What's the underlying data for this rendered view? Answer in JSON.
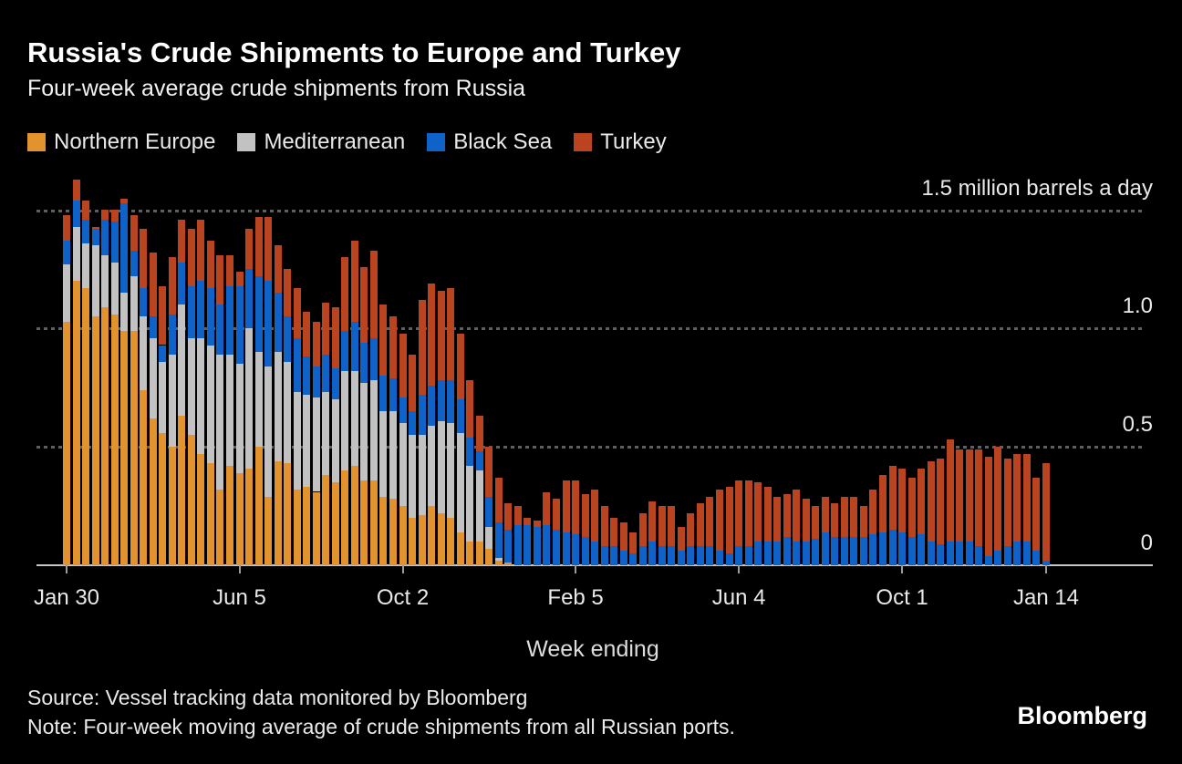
{
  "header": {
    "title": "Russia's Crude Shipments to Europe and Turkey",
    "subtitle": "Four-week average crude shipments from Russia"
  },
  "footer": {
    "source": "Source: Vessel tracking data monitored by Bloomberg",
    "note": "Note: Four-week moving average of crude shipments from all Russian ports.",
    "logo": "Bloomberg"
  },
  "chart_data": {
    "type": "bar",
    "stacked": true,
    "title": "Russia's Crude Shipments to Europe and Turkey",
    "subtitle": "Four-week average crude shipments from Russia",
    "unit": "million barrels a day",
    "x_axis_label": "Week ending",
    "legend_position": "top",
    "grid": "dashed-horizontal",
    "background_color": "#000000",
    "ylim": [
      0,
      1.69
    ],
    "weeks": 103,
    "x_ticks": [
      {
        "label": "Jan 30",
        "week": 0
      },
      {
        "label": "Jun 5",
        "week": 18
      },
      {
        "label": "Oct 2",
        "week": 35
      },
      {
        "label": "Feb 5",
        "week": 53
      },
      {
        "label": "Jun 4",
        "week": 70
      },
      {
        "label": "Oct 1",
        "week": 87
      },
      {
        "label": "Jan 14",
        "week": 102
      }
    ],
    "y_ticks": [
      {
        "label": "1.5 million barrels a day",
        "value": 1.5,
        "style": "dashed"
      },
      {
        "label": "1.0",
        "value": 1.0,
        "style": "dashed"
      },
      {
        "label": "0.5",
        "value": 0.5,
        "style": "dashed"
      },
      {
        "label": "0",
        "value": 0,
        "style": "solid"
      }
    ],
    "series": [
      {
        "name": "Northern Europe",
        "color": "#E3932E",
        "values": [
          1.03,
          1.2,
          1.17,
          1.05,
          1.09,
          1.06,
          0.99,
          0.99,
          0.74,
          0.62,
          0.56,
          0.5,
          0.63,
          0.55,
          0.47,
          0.43,
          0.32,
          0.42,
          0.39,
          0.41,
          0.5,
          0.29,
          0.44,
          0.43,
          0.32,
          0.33,
          0.31,
          0.38,
          0.35,
          0.4,
          0.42,
          0.36,
          0.36,
          0.29,
          0.28,
          0.25,
          0.2,
          0.21,
          0.25,
          0.22,
          0.2,
          0.14,
          0.1,
          0.1,
          0.07,
          0.02,
          0.01,
          0,
          0,
          0,
          0,
          0,
          0,
          0,
          0,
          0,
          0,
          0,
          0,
          0,
          0,
          0,
          0,
          0,
          0,
          0,
          0,
          0,
          0,
          0,
          0,
          0,
          0,
          0,
          0,
          0,
          0,
          0,
          0,
          0,
          0,
          0,
          0,
          0,
          0,
          0,
          0,
          0,
          0,
          0,
          0,
          0,
          0,
          0,
          0,
          0,
          0,
          0,
          0,
          0,
          0,
          0,
          0
        ]
      },
      {
        "name": "Mediterranean",
        "color": "#C2C2C2",
        "values": [
          0.24,
          0.23,
          0.19,
          0.3,
          0.22,
          0.22,
          0.16,
          0.23,
          0.31,
          0.34,
          0.3,
          0.39,
          0.47,
          0.41,
          0.49,
          0.5,
          0.57,
          0.47,
          0.46,
          0.59,
          0.4,
          0.55,
          0.46,
          0.43,
          0.41,
          0.39,
          0.4,
          0.35,
          0.35,
          0.42,
          0.4,
          0.41,
          0.42,
          0.36,
          0.37,
          0.35,
          0.35,
          0.34,
          0.34,
          0.39,
          0.4,
          0.42,
          0.32,
          0.3,
          0.09,
          0.01,
          0,
          0,
          0,
          0,
          0,
          0,
          0,
          0,
          0,
          0,
          0,
          0,
          0,
          0,
          0,
          0,
          0,
          0,
          0,
          0,
          0,
          0,
          0,
          0,
          0,
          0,
          0,
          0,
          0,
          0,
          0,
          0,
          0,
          0,
          0,
          0,
          0,
          0,
          0,
          0,
          0,
          0,
          0,
          0,
          0,
          0,
          0,
          0,
          0,
          0,
          0,
          0,
          0,
          0,
          0,
          0,
          0
        ]
      },
      {
        "name": "Black Sea",
        "color": "#0E62C8",
        "values": [
          0.1,
          0.11,
          0.1,
          0.07,
          0.15,
          0.17,
          0.38,
          0.11,
          0.12,
          0.09,
          0.07,
          0.17,
          0.18,
          0.22,
          0.24,
          0.24,
          0.21,
          0.29,
          0.33,
          0.25,
          0.32,
          0.36,
          0.25,
          0.19,
          0.23,
          0.16,
          0.13,
          0.16,
          0.13,
          0.17,
          0.21,
          0.17,
          0.18,
          0.15,
          0.14,
          0.11,
          0.1,
          0.17,
          0.17,
          0.17,
          0.18,
          0.14,
          0.12,
          0.08,
          0.13,
          0.15,
          0.14,
          0.17,
          0.17,
          0.16,
          0.17,
          0.15,
          0.14,
          0.13,
          0.12,
          0.1,
          0.08,
          0.08,
          0.06,
          0.05,
          0.08,
          0.1,
          0.08,
          0.08,
          0.06,
          0.08,
          0.08,
          0.08,
          0.06,
          0.05,
          0.08,
          0.08,
          0.1,
          0.1,
          0.1,
          0.12,
          0.1,
          0.1,
          0.11,
          0.14,
          0.12,
          0.12,
          0.12,
          0.12,
          0.13,
          0.14,
          0.15,
          0.14,
          0.12,
          0.13,
          0.1,
          0.09,
          0.1,
          0.1,
          0.1,
          0.08,
          0.04,
          0.06,
          0.08,
          0.1,
          0.1,
          0.06,
          0.02
        ]
      },
      {
        "name": "Turkey",
        "color": "#B9441F",
        "values": [
          0.11,
          0.09,
          0.08,
          0.01,
          0.04,
          0.05,
          0.02,
          0.15,
          0.25,
          0.27,
          0.25,
          0.24,
          0.18,
          0.24,
          0.26,
          0.2,
          0.21,
          0.13,
          0.06,
          0.17,
          0.25,
          0.27,
          0.2,
          0.2,
          0.21,
          0.19,
          0.19,
          0.22,
          0.26,
          0.31,
          0.34,
          0.32,
          0.37,
          0.3,
          0.26,
          0.27,
          0.24,
          0.4,
          0.43,
          0.38,
          0.39,
          0.28,
          0.24,
          0.15,
          0.21,
          0.19,
          0.11,
          0.08,
          0.03,
          0.03,
          0.14,
          0.13,
          0.22,
          0.23,
          0.18,
          0.22,
          0.17,
          0.12,
          0.12,
          0.09,
          0.14,
          0.17,
          0.17,
          0.17,
          0.1,
          0.14,
          0.18,
          0.21,
          0.26,
          0.28,
          0.28,
          0.28,
          0.25,
          0.23,
          0.19,
          0.18,
          0.22,
          0.18,
          0.14,
          0.15,
          0.14,
          0.17,
          0.17,
          0.13,
          0.19,
          0.24,
          0.27,
          0.27,
          0.25,
          0.28,
          0.34,
          0.36,
          0.43,
          0.39,
          0.39,
          0.41,
          0.42,
          0.44,
          0.37,
          0.37,
          0.37,
          0.31,
          0.41
        ]
      }
    ]
  }
}
